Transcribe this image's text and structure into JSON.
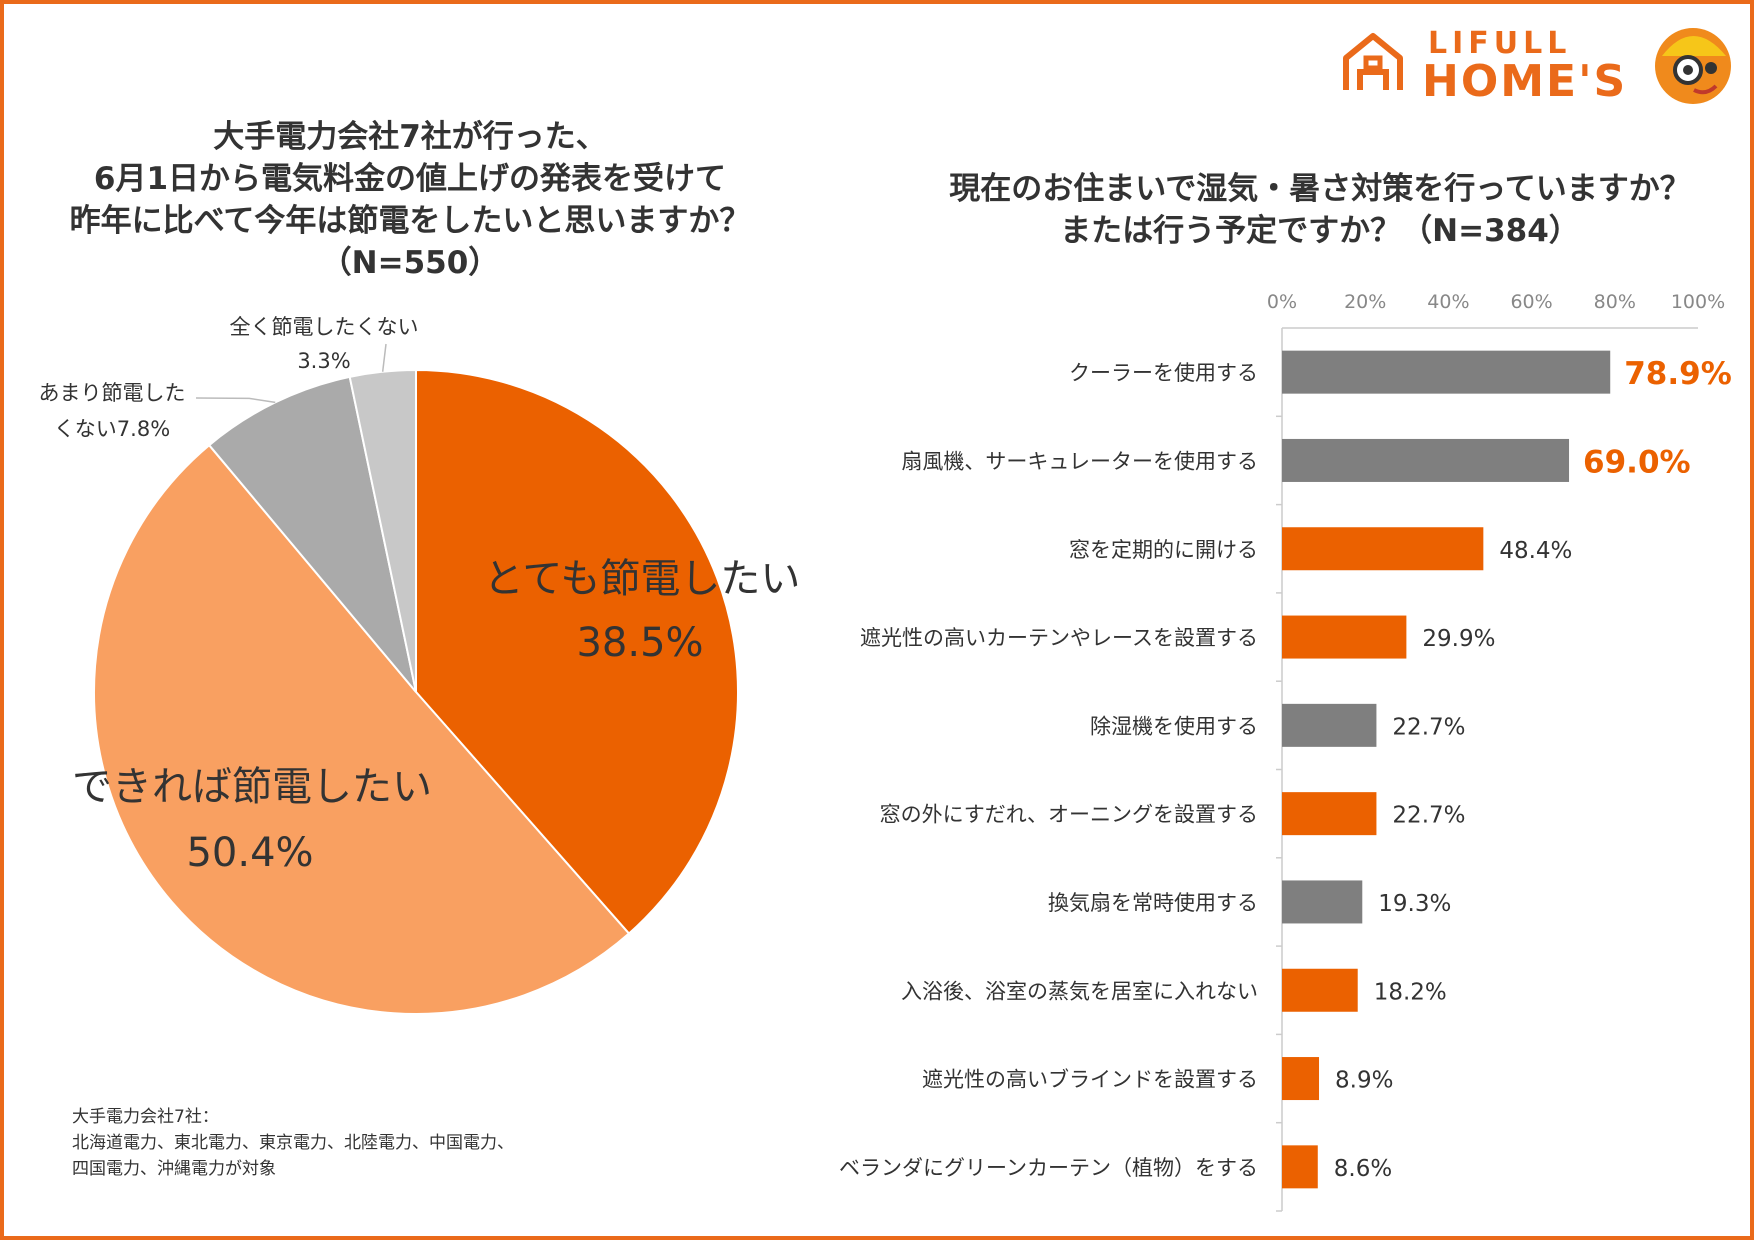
{
  "brand": {
    "top": "LIFULL",
    "main": "HOME'S",
    "color": "#ea6a1a"
  },
  "left_title": {
    "lines": [
      "大手電力会社7社が行った、",
      "6月1日から電気料金の値上げの発表を受けて",
      "昨年に比べて今年は節電をしたいと思いますか？",
      "（N=550）"
    ]
  },
  "right_title": {
    "lines": [
      "現在のお住まいで湿気・暑さ対策を行っていますか？",
      "または行う予定ですか？（N=384）"
    ]
  },
  "footnote": {
    "lines": [
      "大手電力会社7社：",
      "北海道電力、東北電力、東京電力、北陸電力、中国電力、",
      "四国電力、沖縄電力が対象"
    ]
  },
  "chart_data": [
    {
      "type": "pie",
      "title": "大手電力会社7社が行った、6月1日から電気料金の値上げの発表を受けて昨年に比べて今年は節電をしたいと思いますか？（N=550）",
      "slices": [
        {
          "label": "とても節電したい",
          "value": 38.5,
          "value_label": "38.5%",
          "color": "#eb6100"
        },
        {
          "label": "できれば節電したい",
          "value": 50.4,
          "value_label": "50.4%",
          "color": "#f9a061"
        },
        {
          "label": "あまり節電したくない",
          "label_lines": [
            "あまり節電した",
            "くない7.8%"
          ],
          "value": 7.8,
          "value_label": "7.8%",
          "color": "#aaaaaa"
        },
        {
          "label": "全く節電したくない",
          "label_lines": [
            "全く節電したくない",
            "3.3%"
          ],
          "value": 3.3,
          "value_label": "3.3%",
          "color": "#c8c8c8"
        }
      ]
    },
    {
      "type": "bar",
      "orientation": "horizontal",
      "title": "現在のお住まいで湿気・暑さ対策を行っていますか？または行う予定ですか？（N=384）",
      "xlim": [
        0,
        100
      ],
      "xticks": [
        "0%",
        "20%",
        "40%",
        "60%",
        "80%",
        "100%"
      ],
      "categories": [
        "クーラーを使用する",
        "扇風機、サーキュレーターを使用する",
        "窓を定期的に開ける",
        "遮光性の高いカーテンやレースを設置する",
        "除湿機を使用する",
        "窓の外にすだれ、オーニングを設置する",
        "換気扇を常時使用する",
        "入浴後、浴室の蒸気を居室に入れない",
        "遮光性の高いブラインドを設置する",
        "ベランダにグリーンカーテン（植物）をする"
      ],
      "values": [
        78.9,
        69.0,
        48.4,
        29.9,
        22.7,
        22.7,
        19.3,
        18.2,
        8.9,
        8.6
      ],
      "value_labels": [
        "78.9%",
        "69.0%",
        "48.4%",
        "29.9%",
        "22.7%",
        "22.7%",
        "19.3%",
        "18.2%",
        "8.9%",
        "8.6%"
      ],
      "bar_colors": [
        "#7f7f7f",
        "#7f7f7f",
        "#eb6100",
        "#eb6100",
        "#7f7f7f",
        "#eb6100",
        "#7f7f7f",
        "#eb6100",
        "#eb6100",
        "#eb6100"
      ],
      "highlight_labels": [
        true,
        true,
        false,
        false,
        false,
        false,
        false,
        false,
        false,
        false
      ],
      "highlight_color": "#eb6100"
    }
  ]
}
